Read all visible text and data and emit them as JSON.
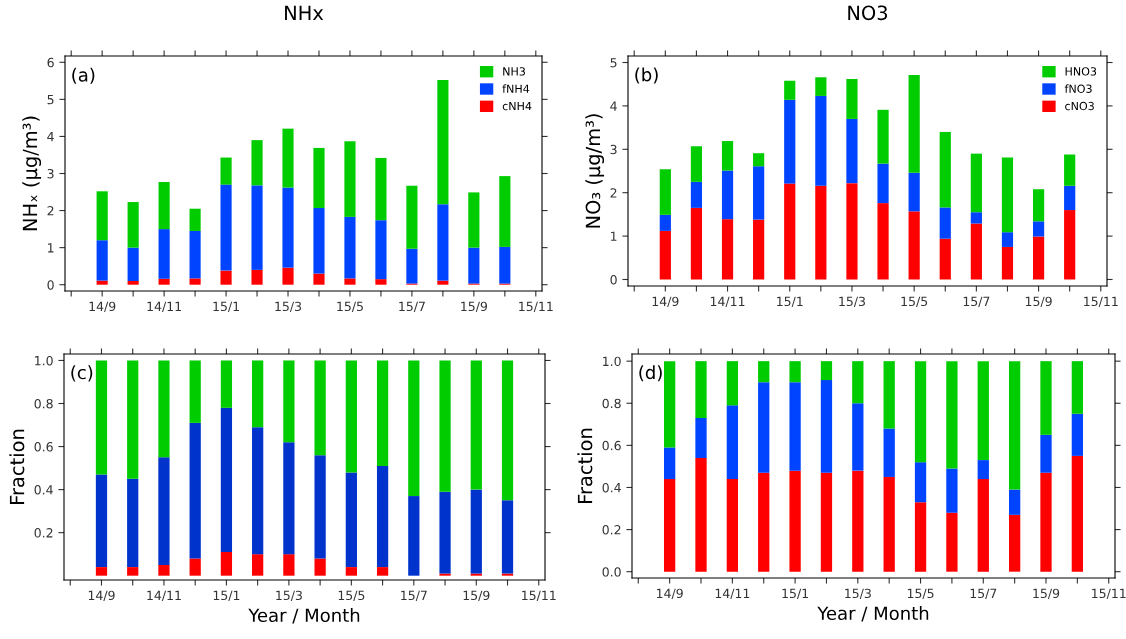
{
  "chart_data": [
    {
      "type": "bar",
      "stacked": true,
      "title": "NHx",
      "ylabel": "NHₓ (μg/m³)",
      "annotations": [
        "(a)"
      ],
      "legend": "top right",
      "grid": false,
      "categories": [
        null,
        "14/9",
        null,
        "14/11",
        null,
        "15/1",
        null,
        "15/3",
        null,
        "15/5",
        null,
        "15/7",
        null,
        "15/9",
        null,
        "15/11"
      ],
      "ylim": [
        -0.17,
        6.17
      ],
      "yticks": [
        0,
        1,
        2,
        3,
        4,
        5,
        6
      ],
      "series": [
        {
          "name": "cNH4",
          "color": "#ff0000",
          "values": [
            null,
            0.11,
            0.1,
            0.16,
            0.17,
            0.38,
            0.4,
            0.46,
            0.3,
            0.17,
            0.15,
            0.03,
            0.11,
            0.03,
            0.03,
            null
          ]
        },
        {
          "name": "fNH4",
          "color": "#0044ff",
          "values": [
            null,
            1.09,
            0.9,
            1.34,
            1.28,
            2.32,
            2.28,
            2.16,
            1.77,
            1.66,
            1.59,
            0.94,
            2.06,
            0.97,
            0.99,
            null
          ]
        },
        {
          "name": "NH3",
          "color": "#00cc00",
          "values": [
            null,
            1.32,
            1.23,
            1.27,
            0.6,
            0.73,
            1.22,
            1.59,
            1.62,
            2.04,
            1.68,
            1.7,
            3.35,
            1.49,
            1.91,
            null
          ]
        }
      ]
    },
    {
      "type": "bar",
      "stacked": true,
      "title": "NO3",
      "ylabel": "NO₃ (μg/m³)",
      "annotations": [
        "(b)"
      ],
      "legend": "top right",
      "grid": false,
      "categories": [
        null,
        "14/9",
        null,
        "14/11",
        null,
        "15/1",
        null,
        "15/3",
        null,
        "15/5",
        null,
        "15/7",
        null,
        "15/9",
        null,
        "15/11"
      ],
      "ylim": [
        -0.15,
        5.15
      ],
      "yticks": [
        0,
        1,
        2,
        3,
        4,
        5
      ],
      "series": [
        {
          "name": "cNO3",
          "color": "#ff0000",
          "values": [
            null,
            1.12,
            1.65,
            1.39,
            1.38,
            2.21,
            2.16,
            2.22,
            1.76,
            1.57,
            0.94,
            1.29,
            0.75,
            0.99,
            1.6,
            null
          ]
        },
        {
          "name": "fNO3",
          "color": "#0044ff",
          "values": [
            null,
            0.37,
            0.6,
            1.12,
            1.23,
            1.93,
            2.07,
            1.48,
            0.91,
            0.89,
            0.72,
            0.26,
            0.34,
            0.35,
            0.56,
            null
          ]
        },
        {
          "name": "HNO3",
          "color": "#00cc00",
          "values": [
            null,
            1.05,
            0.82,
            0.68,
            0.3,
            0.44,
            0.43,
            0.92,
            1.24,
            2.25,
            1.74,
            1.35,
            1.72,
            0.74,
            0.72,
            null
          ]
        }
      ]
    },
    {
      "type": "bar",
      "stacked": true,
      "ylabel": "Fraction",
      "xlabel": "Year / Month",
      "annotations": [
        "(c)"
      ],
      "grid": false,
      "categories": [
        null,
        "14/9",
        null,
        "14/11",
        null,
        "15/1",
        null,
        "15/3",
        null,
        "15/5",
        null,
        "15/7",
        null,
        "15/9",
        null,
        "15/11"
      ],
      "ylim": [
        -0.02,
        1.03
      ],
      "yticks": [
        {
          "value": 0.2,
          "label": "0.2"
        },
        {
          "value": 0.4,
          "label": "0.4"
        },
        {
          "value": 0.6,
          "label": "0.6"
        },
        {
          "value": 0.8,
          "label": "0.8"
        },
        {
          "value": 1.0,
          "label": "1.0"
        }
      ],
      "series": [
        {
          "color": "#ff0000",
          "values": [
            null,
            0.04,
            0.04,
            0.05,
            0.08,
            0.11,
            0.1,
            0.1,
            0.08,
            0.04,
            0.04,
            0.0,
            0.01,
            0.01,
            0.01,
            null
          ]
        },
        {
          "color": "#0033cc",
          "values": [
            null,
            0.43,
            0.41,
            0.5,
            0.63,
            0.67,
            0.59,
            0.52,
            0.48,
            0.44,
            0.47,
            0.37,
            0.38,
            0.39,
            0.34,
            null
          ]
        },
        {
          "color": "#00cc00",
          "values": [
            null,
            0.53,
            0.55,
            0.45,
            0.29,
            0.22,
            0.31,
            0.38,
            0.44,
            0.52,
            0.49,
            0.63,
            0.61,
            0.6,
            0.65,
            null
          ]
        }
      ]
    },
    {
      "type": "bar",
      "stacked": true,
      "ylabel": "Fraction",
      "xlabel": "Year / Month",
      "annotations": [
        "(d)"
      ],
      "grid": false,
      "categories": [
        null,
        "14/9",
        null,
        "14/11",
        null,
        "15/1",
        null,
        "15/3",
        null,
        "15/5",
        null,
        "15/7",
        null,
        "15/9",
        null,
        "15/11"
      ],
      "ylim": [
        -0.03,
        1.034
      ],
      "yticks": [
        {
          "value": 0.0,
          "label": "0.0"
        },
        {
          "value": 0.2,
          "label": "0.2"
        },
        {
          "value": 0.4,
          "label": "0.4"
        },
        {
          "value": 0.6,
          "label": "0.6"
        },
        {
          "value": 0.8,
          "label": "0.8"
        },
        {
          "value": 1.0,
          "label": "1.0"
        }
      ],
      "series": [
        {
          "color": "#ff0000",
          "values": [
            null,
            0.44,
            0.54,
            0.44,
            0.47,
            0.48,
            0.47,
            0.48,
            0.45,
            0.33,
            0.28,
            0.44,
            0.27,
            0.47,
            0.55,
            null
          ]
        },
        {
          "color": "#0044ff",
          "values": [
            null,
            0.15,
            0.19,
            0.35,
            0.43,
            0.42,
            0.44,
            0.32,
            0.23,
            0.19,
            0.21,
            0.09,
            0.12,
            0.18,
            0.2,
            null
          ]
        },
        {
          "color": "#00cc00",
          "values": [
            null,
            0.41,
            0.27,
            0.21,
            0.1,
            0.1,
            0.09,
            0.2,
            0.32,
            0.48,
            0.51,
            0.47,
            0.61,
            0.35,
            0.25,
            null
          ]
        }
      ]
    }
  ]
}
